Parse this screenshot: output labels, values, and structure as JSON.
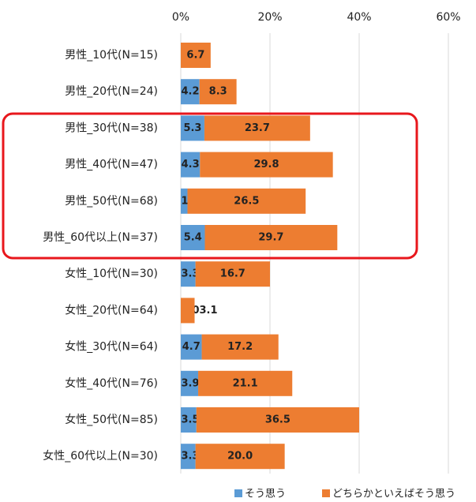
{
  "chart_data": {
    "type": "stacked_barh",
    "categories": [
      "男性_10代(N=15)",
      "男性_20代(N=24)",
      "男性_30代(N=38)",
      "男性_40代(N=47)",
      "男性_50代(N=68)",
      "男性_60代以上(N=37)",
      "女性_10代(N=30)",
      "女性_20代(N=64)",
      "女性_30代(N=64)",
      "女性_40代(N=76)",
      "女性_50代(N=85)",
      "女性_60代以上(N=30)"
    ],
    "series": [
      {
        "name": "そう思う",
        "color": "#5b9bd5",
        "values": [
          0,
          4.2,
          5.3,
          4.3,
          1.5,
          5.4,
          3.3,
          0,
          4.7,
          3.9,
          3.5,
          3.3
        ],
        "value_labels": [
          "0.0",
          "4.2",
          "5.3",
          "4.3",
          "1.5",
          "5.4",
          "3.3",
          "0.0",
          "4.7",
          "3.9",
          "3.5",
          "3.3"
        ]
      },
      {
        "name": "どちらかといえばそう思う",
        "color": "#ed7d31",
        "values": [
          6.7,
          8.3,
          23.7,
          29.8,
          26.5,
          29.7,
          16.7,
          3.1,
          17.2,
          21.1,
          36.5,
          20.0
        ],
        "value_labels": [
          "6.7",
          "8.3",
          "23.7",
          "29.8",
          "26.5",
          "29.7",
          "16.7",
          "3.1",
          "17.2",
          "21.1",
          "36.5",
          "20.0"
        ]
      }
    ],
    "xlim": [
      0,
      60
    ],
    "xticks": [
      {
        "value": 0,
        "label": "0%"
      },
      {
        "value": 20,
        "label": "20%"
      },
      {
        "value": 40,
        "label": "40%"
      },
      {
        "value": 60,
        "label": "60%"
      }
    ],
    "grid": true
  }
}
